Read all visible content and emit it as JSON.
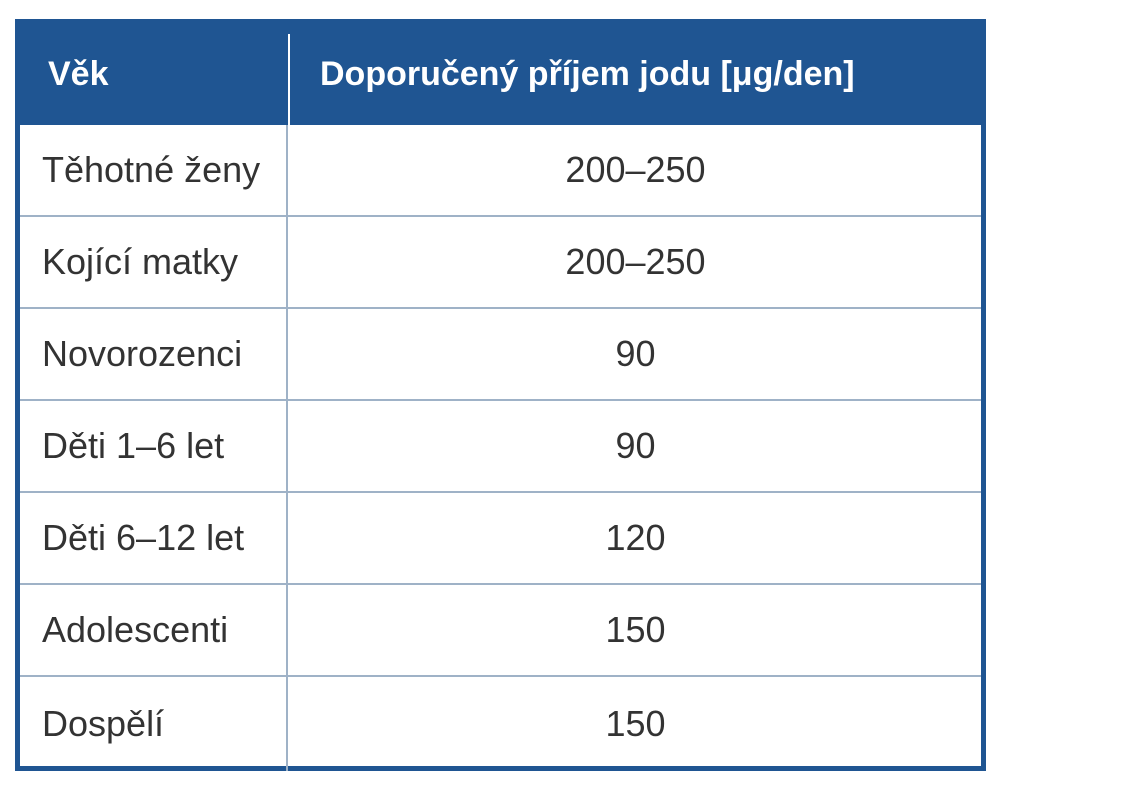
{
  "table": {
    "headers": {
      "age": "Věk",
      "intake": "Doporučený příjem jodu [μg/den]"
    },
    "rows": [
      {
        "age": "Těhotné ženy",
        "intake": "200–250"
      },
      {
        "age": "Kojící matky",
        "intake": "200–250"
      },
      {
        "age": "Novorozenci",
        "intake": "90"
      },
      {
        "age": "Děti 1–6 let",
        "intake": "90"
      },
      {
        "age": "Děti 6–12 let",
        "intake": "120"
      },
      {
        "age": "Adolescenti",
        "intake": "150"
      },
      {
        "age": "Dospělí",
        "intake": "150"
      }
    ]
  },
  "colors": {
    "header_background": "#1f5592",
    "header_text": "#ffffff",
    "body_text": "#333333",
    "grid_lines": "#9fb2c7"
  }
}
